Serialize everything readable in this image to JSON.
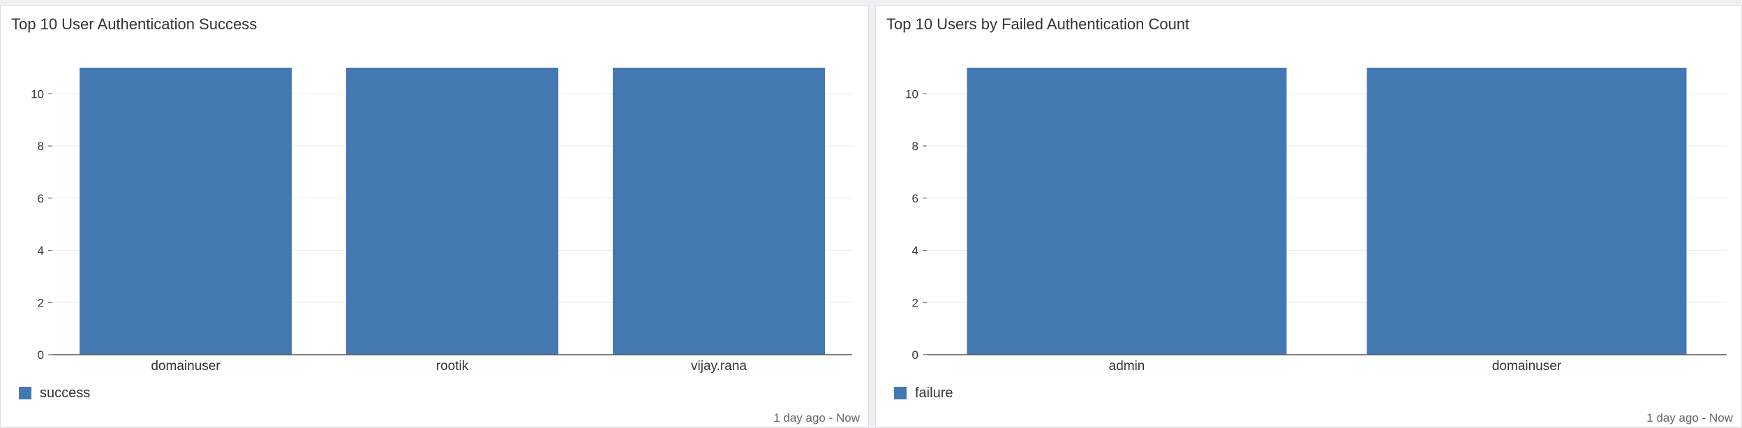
{
  "chart_data": [
    {
      "type": "bar",
      "title": "Top 10 User Authentication Success",
      "categories": [
        "domainuser",
        "rootik",
        "vijay.rana"
      ],
      "series": [
        {
          "name": "success",
          "values": [
            11,
            11,
            11
          ],
          "color": "#4478b3"
        }
      ],
      "yticks": [
        "0",
        "2",
        "4",
        "6",
        "8",
        "10"
      ],
      "ylim": [
        0,
        11.4
      ],
      "grid": true,
      "legend": "bottom-left",
      "timespan": "1 day ago - Now"
    },
    {
      "type": "bar",
      "title": "Top 10 Users by Failed Authentication Count",
      "categories": [
        "admin",
        "domainuser"
      ],
      "series": [
        {
          "name": "failure",
          "values": [
            11,
            11
          ],
          "color": "#4478b3"
        }
      ],
      "yticks": [
        "0",
        "2",
        "4",
        "6",
        "8",
        "10"
      ],
      "ylim": [
        0,
        11.4
      ],
      "grid": true,
      "legend": "bottom-left",
      "timespan": "1 day ago - Now"
    }
  ]
}
